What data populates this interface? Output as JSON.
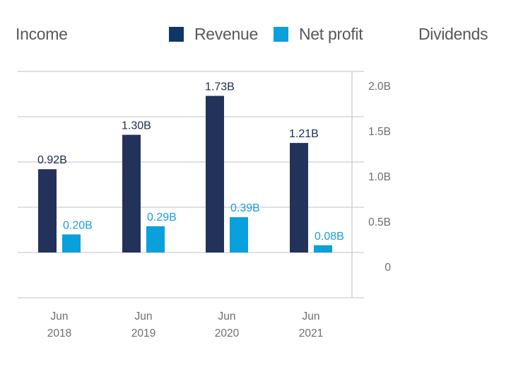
{
  "tabs": {
    "income": "Income",
    "dividends": "Dividends"
  },
  "colors": {
    "revenue": "#22325a",
    "revenue_legend": "#0e3768",
    "net_profit": "#0aa0dc",
    "grid": "#c9cdd2"
  },
  "chart_data": {
    "type": "bar",
    "title": "Income",
    "categories": [
      "Jun 2018",
      "Jun 2019",
      "Jun 2020",
      "Jun 2021"
    ],
    "category_lines": [
      [
        "Jun",
        "2018"
      ],
      [
        "Jun",
        "2019"
      ],
      [
        "Jun",
        "2020"
      ],
      [
        "Jun",
        "2021"
      ]
    ],
    "series": [
      {
        "name": "Revenue",
        "values": [
          0.92,
          1.3,
          1.73,
          1.21
        ],
        "labels": [
          "0.92B",
          "1.30B",
          "1.73B",
          "1.21B"
        ]
      },
      {
        "name": "Net profit",
        "values": [
          0.2,
          0.29,
          0.39,
          0.08
        ],
        "labels": [
          "0.20B",
          "0.29B",
          "0.39B",
          "0.08B"
        ]
      }
    ],
    "yticks": [
      0,
      0.5,
      1.0,
      1.5,
      2.0
    ],
    "ytick_labels": [
      "0",
      "0.5B",
      "1.0B",
      "1.5B",
      "2.0B"
    ],
    "ylim": [
      -0.5,
      2.0
    ],
    "yunit": "B",
    "y_axis_side": "right",
    "grid": true,
    "legend": [
      "Revenue",
      "Net profit"
    ],
    "legend_position": "top"
  }
}
